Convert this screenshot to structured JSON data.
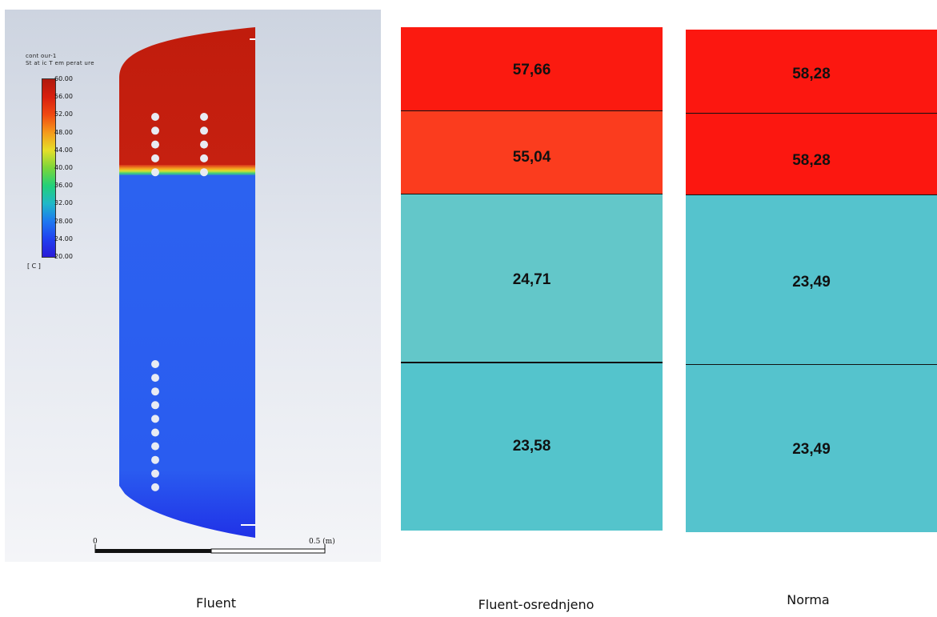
{
  "fluent_panel": {
    "legend": {
      "title_line1": "cont our-1",
      "title_line2": "St at ic T em perat ure",
      "ticks": [
        "60.00",
        "56.00",
        "52.00",
        "48.00",
        "44.00",
        "40.00",
        "36.00",
        "32.00",
        "28.00",
        "24.00",
        "20.00"
      ],
      "unit": "[ C ]"
    },
    "scale_bar": {
      "start_label": "0",
      "end_label": "0.5 (m)"
    },
    "colors": {
      "hot": "#c21d0d",
      "interface": "#f2e23a",
      "cold": "#2a63f0"
    }
  },
  "columns": [
    {
      "name": "fluent-osrednjeno",
      "caption": "Fluent-osrednjeno",
      "cells": [
        {
          "value": "57,66",
          "color": "#fb1a10"
        },
        {
          "value": "55,04",
          "color": "#fb3c1e"
        },
        {
          "value": "24,71",
          "color": "#63c7c9"
        },
        {
          "value": "23,58",
          "color": "#54c4cc"
        }
      ]
    },
    {
      "name": "norma",
      "caption": "Norma",
      "cells": [
        {
          "value": "58,28",
          "color": "#fc1710"
        },
        {
          "value": "58,28",
          "color": "#fc1710"
        },
        {
          "value": "23,49",
          "color": "#55c3cd"
        },
        {
          "value": "23,49",
          "color": "#55c3cd"
        }
      ]
    }
  ],
  "captions": {
    "fluent": "Fluent"
  }
}
